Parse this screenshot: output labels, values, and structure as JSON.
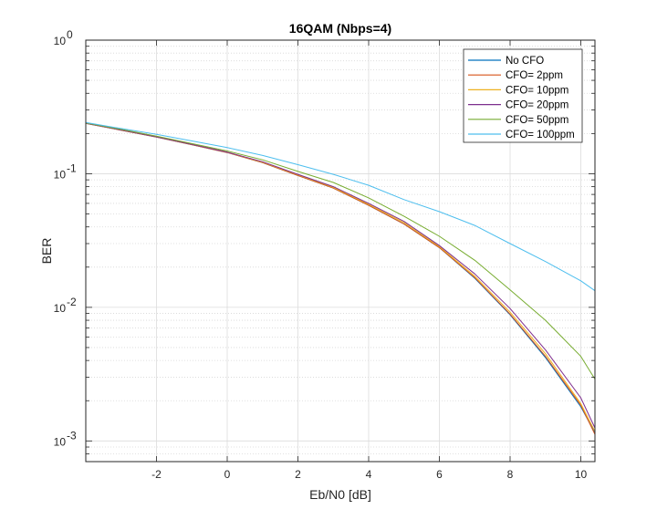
{
  "chart_data": {
    "type": "line",
    "title": "16QAM (Nbps=4)",
    "xlabel": "Eb/N0 [dB]",
    "ylabel": "BER",
    "xlim": [
      -4,
      10.4
    ],
    "ylim": [
      0.0007,
      1
    ],
    "yscale": "log",
    "grid": true,
    "minor_grid": true,
    "legend_position": "top-right",
    "x_ticks": [
      -2,
      0,
      2,
      4,
      6,
      8,
      10
    ],
    "y_ticks": [
      {
        "value": 1,
        "base": "10",
        "exp": "0"
      },
      {
        "value": 0.1,
        "base": "10",
        "exp": "-1"
      },
      {
        "value": 0.01,
        "base": "10",
        "exp": "-2"
      },
      {
        "value": 0.001,
        "base": "10",
        "exp": "-3"
      }
    ],
    "x": [
      -4,
      -3,
      -2,
      -1,
      0,
      1,
      2,
      3,
      4,
      5,
      6,
      7,
      8,
      9,
      10,
      10.4
    ],
    "series": [
      {
        "name": "No CFO",
        "color": "#0072BD",
        "values": [
          0.238,
          0.212,
          0.188,
          0.165,
          0.144,
          0.121,
          0.097,
          0.078,
          0.058,
          0.042,
          0.028,
          0.0165,
          0.0088,
          0.0042,
          0.0018,
          0.00115
        ]
      },
      {
        "name": "CFO= 2ppm",
        "color": "#D95319",
        "values": [
          0.238,
          0.212,
          0.188,
          0.165,
          0.144,
          0.121,
          0.097,
          0.078,
          0.058,
          0.042,
          0.028,
          0.0167,
          0.0089,
          0.0043,
          0.00185,
          0.00112
        ]
      },
      {
        "name": "CFO= 10ppm",
        "color": "#EDB120",
        "values": [
          0.239,
          0.213,
          0.189,
          0.166,
          0.145,
          0.122,
          0.098,
          0.079,
          0.059,
          0.043,
          0.0285,
          0.0171,
          0.0092,
          0.0045,
          0.0019,
          0.00118
        ]
      },
      {
        "name": "CFO= 20ppm",
        "color": "#7E2F8E",
        "values": [
          0.239,
          0.213,
          0.189,
          0.166,
          0.145,
          0.123,
          0.099,
          0.08,
          0.06,
          0.044,
          0.029,
          0.0178,
          0.0098,
          0.0048,
          0.0021,
          0.00125
        ]
      },
      {
        "name": "CFO= 50ppm",
        "color": "#77AC30",
        "values": [
          0.24,
          0.215,
          0.191,
          0.168,
          0.148,
          0.127,
          0.104,
          0.086,
          0.066,
          0.048,
          0.034,
          0.0225,
          0.0135,
          0.008,
          0.0043,
          0.0029
        ]
      },
      {
        "name": "CFO= 100ppm",
        "color": "#4DBEEE",
        "values": [
          0.242,
          0.218,
          0.197,
          0.176,
          0.157,
          0.137,
          0.117,
          0.099,
          0.082,
          0.064,
          0.052,
          0.041,
          0.03,
          0.022,
          0.0158,
          0.0133
        ]
      }
    ]
  }
}
